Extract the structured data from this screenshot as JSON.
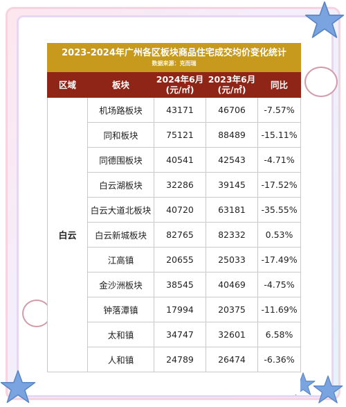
{
  "table": {
    "title": "2023-2024年广州各区板块商品住宅成交均价变化统计",
    "source": "数据来源：克而瑞",
    "headers": {
      "region": "区域",
      "block": "板块",
      "y2024_line1": "2024年6月",
      "y2024_line2": "(元/㎡)",
      "y2023_line1": "2023年6月",
      "y2023_line2": "(元/㎡)",
      "yoy": "同比"
    },
    "region": "白云",
    "rows": [
      {
        "block": "机场路板块",
        "y2024": "43171",
        "y2023": "46706",
        "yoy": "-7.57%"
      },
      {
        "block": "同和板块",
        "y2024": "75121",
        "y2023": "88489",
        "yoy": "-15.11%"
      },
      {
        "block": "同德围板块",
        "y2024": "40541",
        "y2023": "42543",
        "yoy": "-4.71%"
      },
      {
        "block": "白云湖板块",
        "y2024": "32286",
        "y2023": "39145",
        "yoy": "-17.52%"
      },
      {
        "block": "白云大道北板块",
        "y2024": "40720",
        "y2023": "63181",
        "yoy": "-35.55%"
      },
      {
        "block": "白云新城板块",
        "y2024": "82765",
        "y2023": "82332",
        "yoy": "0.53%"
      },
      {
        "block": "江高镇",
        "y2024": "20655",
        "y2023": "25033",
        "yoy": "-17.49%"
      },
      {
        "block": "金沙洲板块",
        "y2024": "38545",
        "y2023": "40469",
        "yoy": "-4.75%"
      },
      {
        "block": "钟落潭镇",
        "y2024": "17994",
        "y2023": "20375",
        "yoy": "-11.69%"
      },
      {
        "block": "太和镇",
        "y2024": "34747",
        "y2023": "32601",
        "yoy": "6.58%"
      },
      {
        "block": "人和镇",
        "y2024": "24789",
        "y2023": "26474",
        "yoy": "-6.36%"
      }
    ]
  },
  "colors": {
    "title_bg": "#c79a1d",
    "header_bg": "#8e2516",
    "star": "#7aa4e0"
  }
}
